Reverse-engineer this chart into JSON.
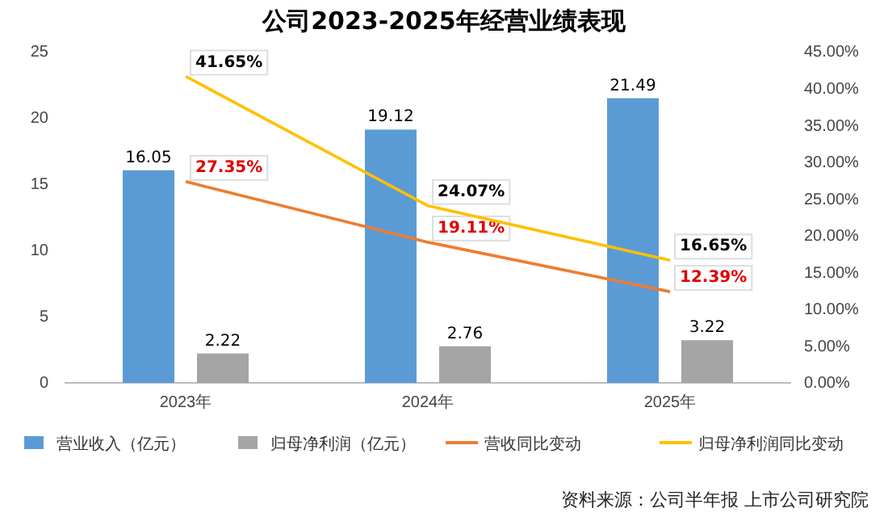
{
  "chart_data": {
    "type": "bar",
    "title": "公司2023-2025年经营业绩表现",
    "categories": [
      "2023年",
      "2024年",
      "2025年"
    ],
    "series": [
      {
        "name": "营业收入（亿元）",
        "color": "#5b9bd5",
        "values": [
          16.05,
          19.12,
          21.49
        ],
        "value_labels": [
          "16.05",
          "19.12",
          "21.49"
        ]
      },
      {
        "name": "归母净利润（亿元）",
        "color": "#a5a5a5",
        "values": [
          2.22,
          2.76,
          3.22
        ],
        "value_labels": [
          "2.22",
          "2.76",
          "3.22"
        ]
      },
      {
        "name": "营收同比变动",
        "type": "line",
        "axis": "y2",
        "color": "#ed7d31",
        "values": [
          27.35,
          19.11,
          12.39
        ],
        "value_labels": [
          "27.35%",
          "19.11%",
          "12.39%"
        ]
      },
      {
        "name": "归母净利润同比变动",
        "type": "line",
        "axis": "y2",
        "color": "#ffc000",
        "values": [
          41.65,
          24.07,
          16.65
        ],
        "value_labels": [
          "41.65%",
          "24.07%",
          "16.65%"
        ]
      }
    ],
    "ylim": [
      0,
      25
    ],
    "yticks": [
      0,
      5,
      10,
      15,
      20,
      25
    ],
    "y2lim": [
      0,
      45
    ],
    "y2ticks": [
      {
        "value": 0,
        "label": "0.00%"
      },
      {
        "value": 5,
        "label": "5.00%"
      },
      {
        "value": 10,
        "label": "10.00%"
      },
      {
        "value": 15,
        "label": "15.00%"
      },
      {
        "value": 20,
        "label": "20.00%"
      },
      {
        "value": 25,
        "label": "25.00%"
      },
      {
        "value": 30,
        "label": "30.00%"
      },
      {
        "value": 35,
        "label": "35.00%"
      },
      {
        "value": 40,
        "label": "40.00%"
      },
      {
        "value": 45,
        "label": "45.00%"
      }
    ],
    "legend": "bottom",
    "annotations": [
      "资料来源：公司半年报 上市公司研究院"
    ]
  }
}
